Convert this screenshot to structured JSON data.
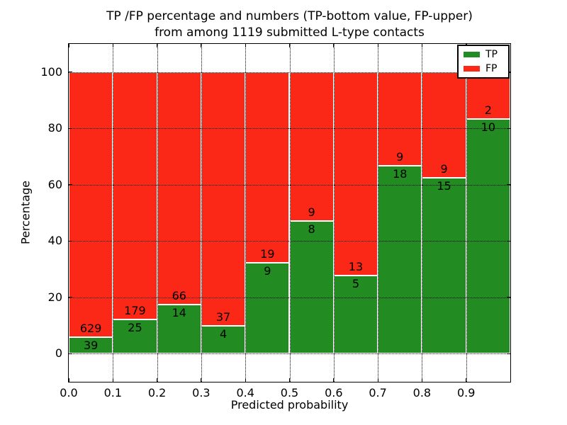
{
  "title": {
    "line1": "TP /FP percentage and numbers (TP-bottom value, FP-upper)",
    "line2": "from among 1119 submitted L-type contacts"
  },
  "axes": {
    "xlabel": "Predicted probability",
    "ylabel": "Percentage"
  },
  "legend": {
    "items": [
      {
        "label": "TP",
        "color": "#228b22"
      },
      {
        "label": "FP",
        "color": "#fb2818"
      }
    ],
    "position": "upper right"
  },
  "chart_data": {
    "type": "bar",
    "stacked": true,
    "normalized_to_percent": true,
    "title": "TP /FP percentage and numbers (TP-bottom value, FP-upper)\nfrom among 1119 submitted L-type contacts",
    "xlabel": "Predicted probability",
    "ylabel": "Percentage",
    "total_contacts": 1119,
    "bin_edges": [
      0.0,
      0.1,
      0.2,
      0.3,
      0.4,
      0.5,
      0.6,
      0.7,
      0.8,
      0.9,
      1.0
    ],
    "series": [
      {
        "name": "TP",
        "color": "#228b22",
        "counts": [
          39,
          25,
          14,
          4,
          9,
          8,
          5,
          18,
          15,
          10
        ]
      },
      {
        "name": "FP",
        "color": "#fb2818",
        "counts": [
          629,
          179,
          66,
          37,
          19,
          9,
          13,
          9,
          9,
          2
        ]
      }
    ],
    "tp_percent": [
      5.84,
      12.25,
      17.5,
      9.76,
      32.14,
      47.06,
      27.78,
      66.67,
      62.5,
      83.33
    ],
    "fp_percent": [
      94.16,
      87.75,
      82.5,
      90.24,
      67.86,
      52.94,
      72.22,
      33.33,
      37.5,
      16.67
    ],
    "xticks": [
      "0.0",
      "0.1",
      "0.2",
      "0.3",
      "0.4",
      "0.5",
      "0.6",
      "0.7",
      "0.8",
      "0.9"
    ],
    "yticks": [
      0,
      20,
      40,
      60,
      80,
      100
    ],
    "xlim": [
      0.0,
      1.0
    ],
    "ylim": [
      -10,
      110
    ],
    "grid": {
      "style": "dotted",
      "color": "#000000",
      "on": true
    },
    "bar_edge_color": "#ffffff",
    "background": "#ffffff",
    "legend_position": "upper right"
  }
}
